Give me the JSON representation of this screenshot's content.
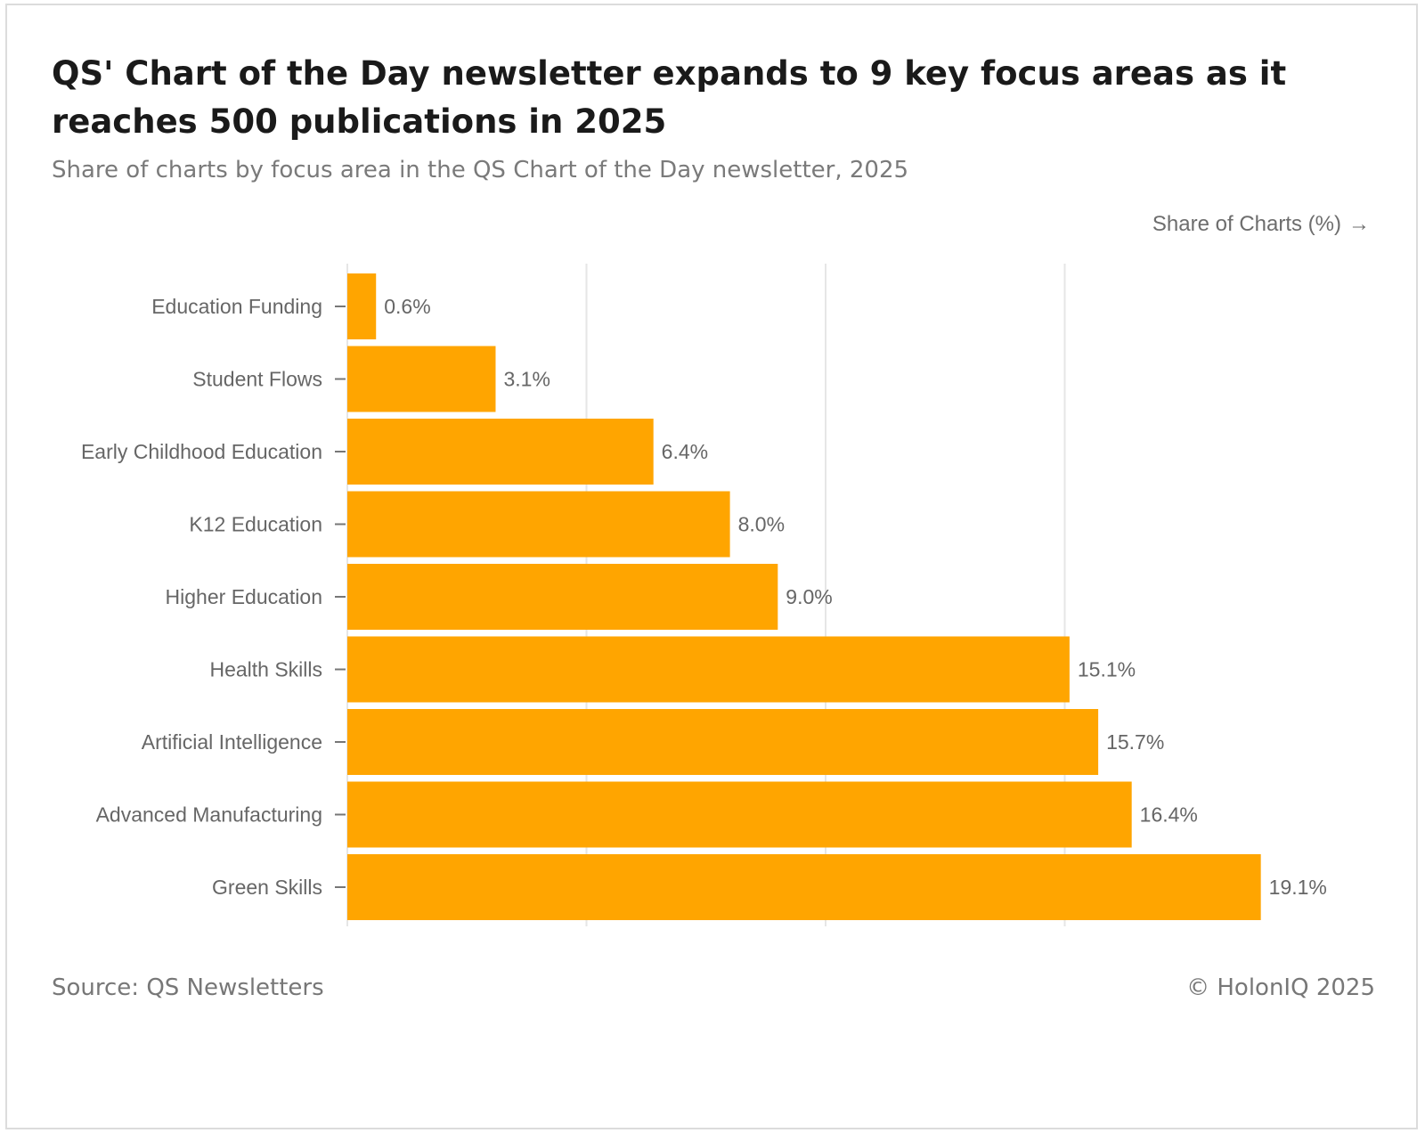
{
  "header": {
    "title": "QS' Chart of the Day newsletter expands to 9 key focus areas as it reaches 500 publications in 2025",
    "subtitle": "Share of charts by focus area in the QS Chart of the Day newsletter, 2025"
  },
  "axis": {
    "title": "Share of Charts (%)",
    "arrow": "→"
  },
  "footer": {
    "source": "Source: QS Newsletters",
    "copyright": "© HolonIQ 2025"
  },
  "colors": {
    "bar": "#FFA500",
    "grid": "#e6e6e6",
    "label": "#666666",
    "value_label": "#666666"
  },
  "chart_data": {
    "type": "bar",
    "orientation": "horizontal",
    "title": "QS' Chart of the Day newsletter expands to 9 key focus areas as it reaches 500 publications in 2025",
    "subtitle": "Share of charts by focus area in the QS Chart of the Day newsletter, 2025",
    "xlabel": "Share of Charts (%)",
    "ylabel": "",
    "xlim": [
      0,
      20
    ],
    "gridlines_at": [
      0,
      5,
      10,
      15
    ],
    "grid": true,
    "categories": [
      "Education Funding",
      "Student Flows",
      "Early Childhood Education",
      "K12 Education",
      "Higher Education",
      "Health Skills",
      "Artificial Intelligence",
      "Advanced Manufacturing",
      "Green Skills"
    ],
    "values": [
      0.6,
      3.1,
      6.4,
      8.0,
      9.0,
      15.1,
      15.7,
      16.4,
      19.1
    ],
    "value_labels": [
      "0.6%",
      "3.1%",
      "6.4%",
      "8.0%",
      "9.0%",
      "15.1%",
      "15.7%",
      "16.4%",
      "19.1%"
    ]
  }
}
